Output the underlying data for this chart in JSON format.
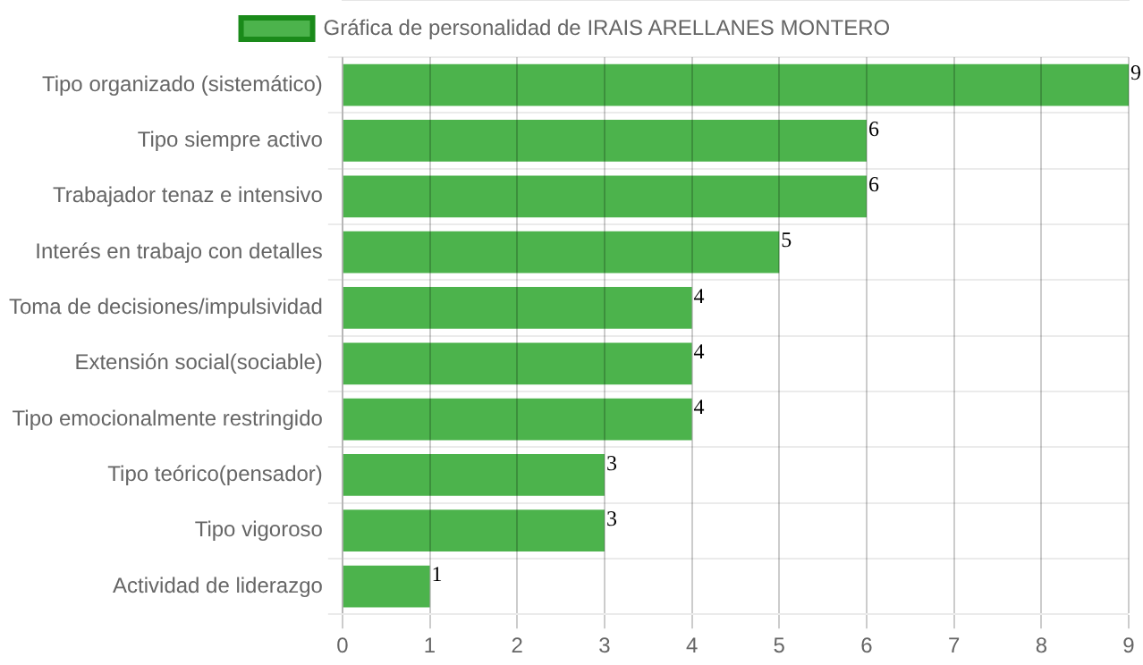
{
  "chart_data": {
    "type": "bar",
    "orientation": "horizontal",
    "categories": [
      "Tipo organizado (sistemático)",
      "Tipo siempre activo",
      "Trabajador tenaz e intensivo",
      "Interés en trabajo con detalles",
      "Toma de decisiones/impulsividad",
      "Extensión social(sociable)",
      "Tipo emocionalmente restringido",
      "Tipo teórico(pensador)",
      "Tipo vigoroso",
      "Actividad de liderazgo"
    ],
    "series": [
      {
        "name": "Gráfica de personalidad de IRAIS ARELLANES MONTERO",
        "color": "#4cb34c",
        "values": [
          9,
          6,
          6,
          5,
          4,
          4,
          4,
          3,
          3,
          1
        ]
      }
    ],
    "xlim": [
      0,
      9
    ],
    "xticks": [
      0,
      1,
      2,
      3,
      4,
      5,
      6,
      7,
      8,
      9
    ],
    "grid": true,
    "legend": "top",
    "data_labels": true
  }
}
